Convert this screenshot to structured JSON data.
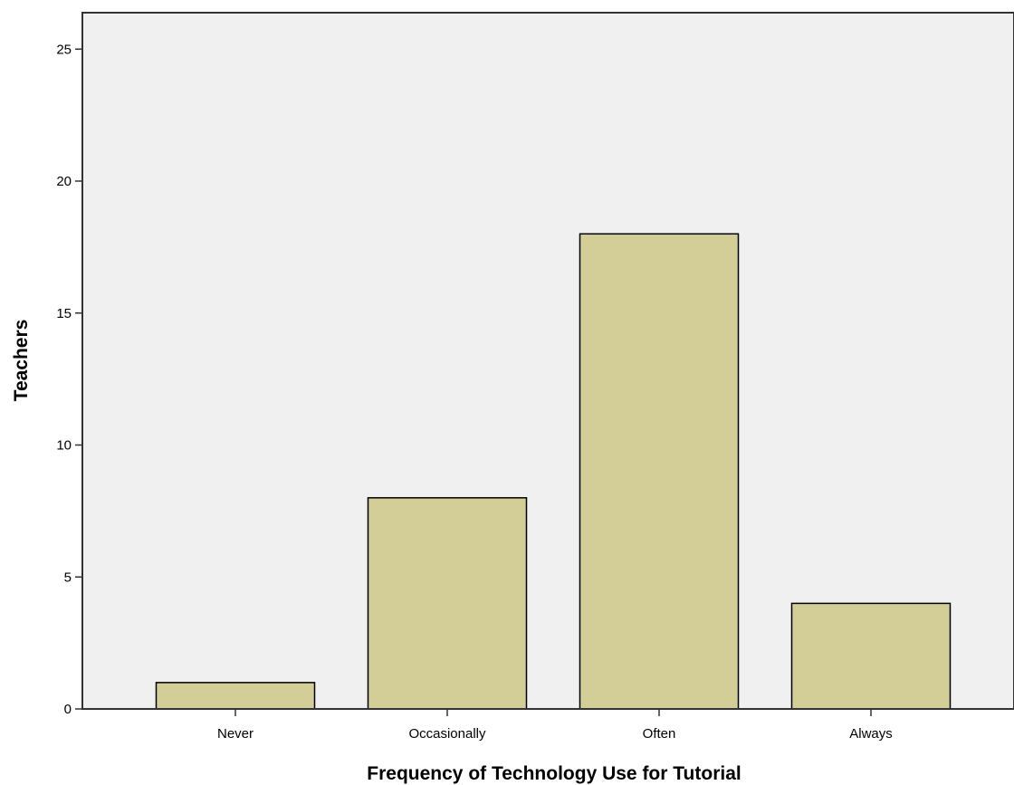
{
  "chart_data": {
    "type": "bar",
    "categories": [
      "Never",
      "Occasionally",
      "Often",
      "Always"
    ],
    "values": [
      1,
      8,
      18,
      4
    ],
    "xlabel": "Frequency of Technology Use for Tutorial",
    "ylabel": "Teachers",
    "ylim": [
      0,
      26
    ],
    "yticks": [
      0,
      5,
      10,
      15,
      20,
      25
    ],
    "grid": false,
    "legend": "none",
    "colors": {
      "bar_fill": "#d3ce97",
      "bar_stroke": "#000000",
      "plot_background": "#f0f0f0",
      "axis": "#333333"
    }
  }
}
